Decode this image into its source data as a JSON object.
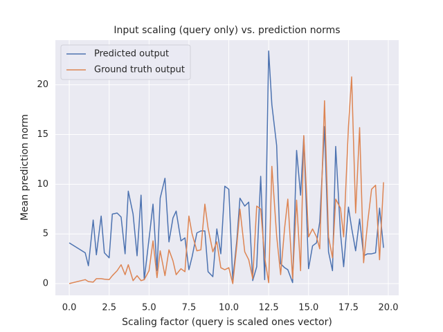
{
  "chart_data": {
    "type": "line",
    "title": "Input scaling (query only) vs. prediction norms",
    "xlabel": "Scaling factor (query is scaled ones vector)",
    "ylabel": "Mean prediction norm",
    "x": [
      0.0,
      1.0,
      1.2,
      1.5,
      1.7,
      2.0,
      2.2,
      2.5,
      2.7,
      3.0,
      3.25,
      3.5,
      3.7,
      4.0,
      4.25,
      4.5,
      4.7,
      5.0,
      5.25,
      5.5,
      5.7,
      6.0,
      6.25,
      6.5,
      6.7,
      7.0,
      7.25,
      7.5,
      7.7,
      8.0,
      8.25,
      8.5,
      8.7,
      9.0,
      9.25,
      9.5,
      9.75,
      10.0,
      10.25,
      10.5,
      10.7,
      11.0,
      11.25,
      11.5,
      11.75,
      12.0,
      12.25,
      12.5,
      12.7,
      13.0,
      13.25,
      13.5,
      13.7,
      14.0,
      14.25,
      14.5,
      14.7,
      15.0,
      15.25,
      15.5,
      15.7,
      16.0,
      16.25,
      16.5,
      16.7,
      17.0,
      17.2,
      17.5,
      17.7,
      17.95,
      18.2,
      18.45,
      18.7,
      18.95,
      19.2,
      19.45,
      19.7
    ],
    "series": [
      {
        "name": "Predicted output",
        "color": "#4c72b0",
        "values": [
          4.1,
          3.1,
          1.8,
          6.4,
          2.9,
          6.8,
          3.1,
          2.6,
          7.0,
          7.1,
          6.7,
          3.0,
          9.3,
          7.0,
          2.8,
          8.9,
          0.4,
          4.5,
          8.0,
          1.3,
          8.6,
          10.6,
          4.2,
          6.6,
          7.3,
          4.3,
          4.6,
          1.4,
          2.7,
          5.1,
          5.3,
          5.3,
          1.2,
          0.7,
          5.5,
          3.0,
          9.8,
          9.5,
          0.4,
          4.3,
          8.6,
          7.8,
          8.2,
          0.3,
          1.7,
          10.8,
          0.4,
          23.4,
          18.0,
          13.9,
          2.0,
          1.6,
          1.4,
          0.1,
          13.4,
          8.9,
          14.8,
          1.5,
          3.8,
          4.1,
          6.2,
          15.8,
          3.2,
          1.3,
          13.8,
          5.1,
          1.7,
          7.7,
          5.6,
          3.3,
          6.5,
          2.8,
          3.0,
          3.0,
          3.1,
          7.6,
          3.6
        ]
      },
      {
        "name": "Ground truth output",
        "color": "#dd8452",
        "values": [
          0.0,
          0.4,
          0.2,
          0.15,
          0.5,
          0.5,
          0.45,
          0.4,
          0.8,
          1.3,
          1.9,
          0.9,
          1.9,
          0.3,
          0.8,
          0.3,
          0.4,
          1.3,
          4.3,
          0.6,
          3.3,
          0.8,
          3.4,
          2.3,
          0.9,
          1.5,
          1.2,
          6.8,
          5.0,
          3.3,
          3.4,
          8.0,
          5.6,
          3.2,
          4.2,
          1.6,
          1.4,
          1.6,
          0.0,
          3.8,
          7.5,
          3.2,
          2.4,
          0.5,
          7.8,
          7.5,
          2.6,
          0.1,
          11.8,
          4.8,
          0.9,
          5.6,
          8.5,
          0.5,
          8.4,
          1.3,
          14.9,
          4.7,
          5.5,
          4.7,
          3.5,
          18.4,
          4.7,
          2.6,
          8.5,
          7.6,
          4.7,
          15.8,
          20.8,
          7.1,
          15.7,
          2.1,
          6.1,
          9.5,
          9.9,
          2.4,
          10.2
        ]
      }
    ],
    "xlim": [
      -0.87,
      20.65
    ],
    "ylim": [
      -1.18,
      24.5
    ],
    "xticks": [
      {
        "value": 0,
        "label": "0.0"
      },
      2.5,
      {
        "value": 5,
        "label": "5.0"
      },
      7.5,
      {
        "value": 10,
        "label": "10.0"
      },
      12.5,
      {
        "value": 15,
        "label": "15.0"
      },
      17.5,
      {
        "value": 20,
        "label": "20.0"
      }
    ],
    "yticks": [
      0,
      5,
      10,
      15,
      20
    ],
    "grid": true,
    "legend": "upper left"
  }
}
